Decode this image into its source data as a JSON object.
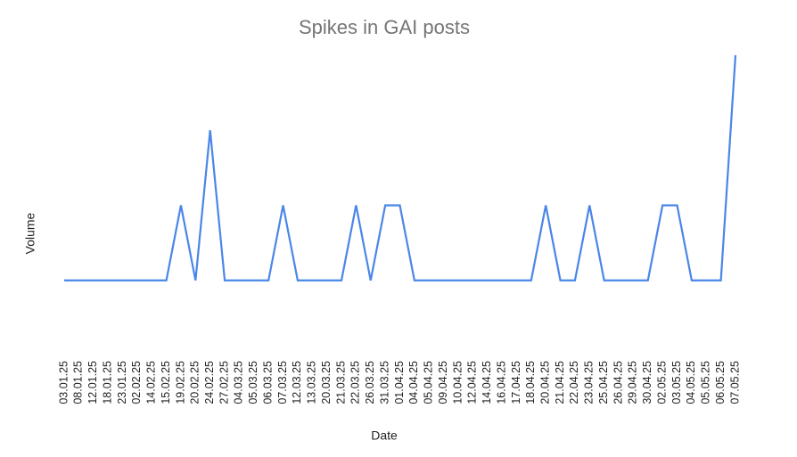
{
  "chart_data": {
    "type": "line",
    "title": "Spikes in GAI posts",
    "x_label": "Date",
    "y_label": "Volume",
    "categories": [
      "03.01.25",
      "08.01.25",
      "12.01.25",
      "18.01.25",
      "23.01.25",
      "02.02.25",
      "14.02.25",
      "15.02.25",
      "19.02.25",
      "20.02.25",
      "24.02.25",
      "27.02.25",
      "04.03.25",
      "05.03.25",
      "06.03.25",
      "07.03.25",
      "12.03.25",
      "13.03.25",
      "20.03.25",
      "21.03.25",
      "22.03.25",
      "26.03.25",
      "31.03.25",
      "01.04.25",
      "04.04.25",
      "05.04.25",
      "09.04.25",
      "10.04.25",
      "12.04.25",
      "14.04.25",
      "16.04.25",
      "17.04.25",
      "18.04.25",
      "20.04.25",
      "21.04.25",
      "22.04.25",
      "23.04.25",
      "25.04.25",
      "26.04.25",
      "29.04.25",
      "30.04.25",
      "02.05.25",
      "03.05.25",
      "04.05.25",
      "05.05.25",
      "06.05.25",
      "07.05.25"
    ],
    "series": [
      {
        "name": "Volume",
        "color": "#4a86e8",
        "values": [
          1,
          1,
          1,
          1,
          1,
          1,
          1,
          1,
          2,
          1,
          3,
          1,
          1,
          1,
          1,
          2,
          1,
          1,
          1,
          1,
          2,
          1,
          2,
          2,
          1,
          1,
          1,
          1,
          1,
          1,
          1,
          1,
          1,
          2,
          1,
          1,
          2,
          1,
          1,
          1,
          1,
          2,
          2,
          1,
          1,
          1,
          4
        ]
      }
    ],
    "ylim": [
      0,
      4
    ]
  }
}
